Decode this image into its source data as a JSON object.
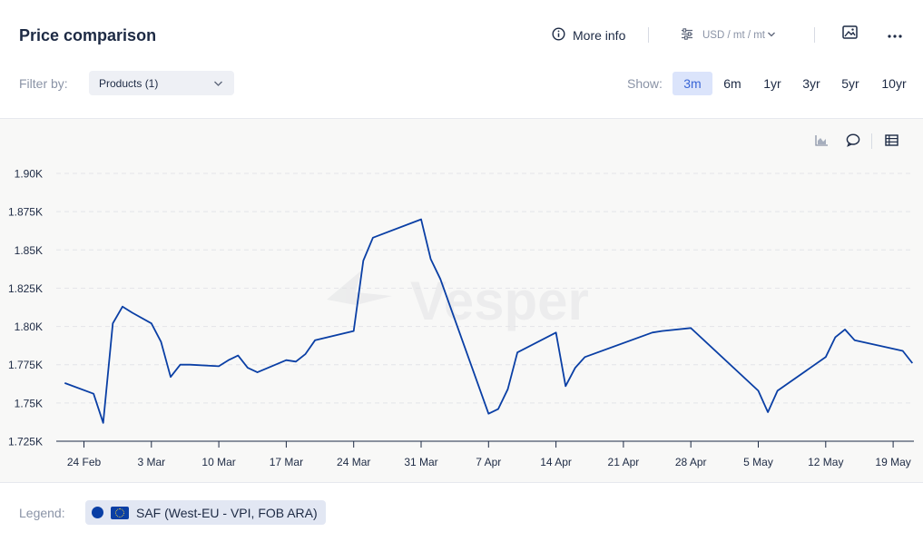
{
  "header": {
    "title": "Price comparison",
    "more_info": "More info",
    "unit": "USD / mt / mt",
    "icons": [
      "info-icon",
      "sliders-icon",
      "chevron-down-icon",
      "image-download-icon",
      "more-dots-icon"
    ]
  },
  "filter": {
    "label": "Filter by:",
    "products": "Products (1)"
  },
  "show": {
    "label": "Show:",
    "ranges": [
      "3m",
      "6m",
      "1yr",
      "3yr",
      "5yr",
      "10yr"
    ],
    "active": "3m"
  },
  "toolbar_icons": [
    "area-chart-icon",
    "comment-icon",
    "table-icon"
  ],
  "watermark": "Vesper",
  "legend": {
    "label": "Legend:",
    "items": [
      {
        "name": "SAF (West-EU - VPI, FOB ARA)",
        "color": "#0a3fa5"
      }
    ]
  },
  "colors": {
    "accent": "#3a66d6",
    "series": "#0a3fa5",
    "active_bg": "#dbe4fb"
  },
  "chart_data": {
    "type": "line",
    "title": "",
    "xlabel": "",
    "ylabel": "",
    "ylim": [
      1725,
      1900
    ],
    "y_ticks": [
      "1.90K",
      "1.875K",
      "1.85K",
      "1.825K",
      "1.80K",
      "1.775K",
      "1.75K",
      "1.725K"
    ],
    "x_ticks": [
      "24 Feb",
      "3 Mar",
      "10 Mar",
      "17 Mar",
      "24 Mar",
      "31 Mar",
      "7 Apr",
      "14 Apr",
      "21 Apr",
      "28 Apr",
      "5 May",
      "12 May",
      "19 May"
    ],
    "grid": true,
    "legend": "bottom",
    "series": [
      {
        "name": "SAF (West-EU - VPI, FOB ARA)",
        "x": [
          "2025-02-22",
          "2025-02-25",
          "2025-02-26",
          "2025-02-27",
          "2025-02-28",
          "2025-03-01",
          "2025-03-03",
          "2025-03-04",
          "2025-03-05",
          "2025-03-06",
          "2025-03-07",
          "2025-03-10",
          "2025-03-11",
          "2025-03-12",
          "2025-03-13",
          "2025-03-14",
          "2025-03-17",
          "2025-03-18",
          "2025-03-19",
          "2025-03-20",
          "2025-03-24",
          "2025-03-25",
          "2025-03-26",
          "2025-03-31",
          "2025-04-01",
          "2025-04-02",
          "2025-04-07",
          "2025-04-08",
          "2025-04-09",
          "2025-04-10",
          "2025-04-14",
          "2025-04-15",
          "2025-04-16",
          "2025-04-17",
          "2025-04-24",
          "2025-04-25",
          "2025-04-28",
          "2025-05-05",
          "2025-05-06",
          "2025-05-07",
          "2025-05-12",
          "2025-05-13",
          "2025-05-14",
          "2025-05-15",
          "2025-05-20",
          "2025-05-21"
        ],
        "y": [
          1763,
          1756,
          1737,
          1802,
          1813,
          1809,
          1802,
          1790,
          1767,
          1775,
          1775,
          1774,
          1778,
          1781,
          1773,
          1770,
          1778,
          1777,
          1782,
          1791,
          1797,
          1843,
          1858,
          1870,
          1844,
          1831,
          1743,
          1746,
          1759,
          1783,
          1796,
          1761,
          1773,
          1780,
          1796,
          1797,
          1799,
          1758,
          1744,
          1758,
          1780,
          1793,
          1798,
          1791,
          1784,
          1776
        ]
      }
    ]
  }
}
